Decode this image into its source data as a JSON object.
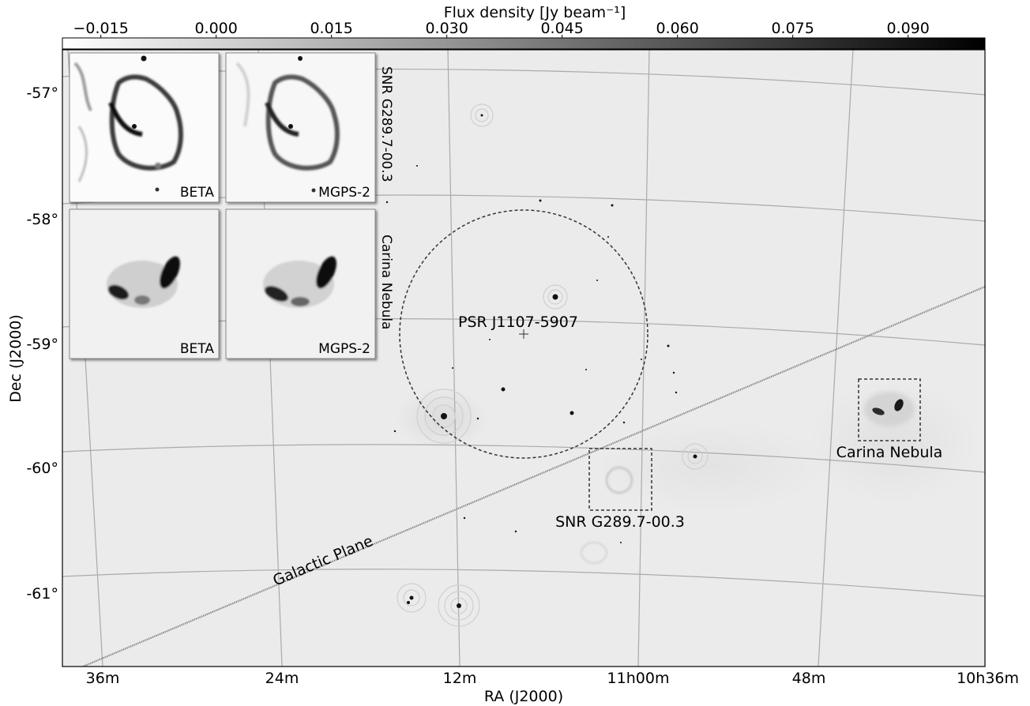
{
  "chart_data": {
    "type": "heatmap",
    "colorbar": {
      "label": "Flux density [Jy beam⁻¹]",
      "ticks": [
        "−0.015",
        "0.000",
        "0.015",
        "0.030",
        "0.045",
        "0.060",
        "0.075",
        "0.090"
      ],
      "tick_values": [
        -0.015,
        0.0,
        0.015,
        0.03,
        0.045,
        0.06,
        0.075,
        0.09
      ],
      "range": [
        -0.02,
        0.1
      ],
      "colors": [
        "#ffffff",
        "#000000"
      ]
    },
    "xlabel": "RA (J2000)",
    "ylabel": "Dec (J2000)",
    "x_ticks": [
      "36m",
      "24m",
      "12m",
      "11h00m",
      "48m",
      "10h36m"
    ],
    "y_ticks": [
      "-57°",
      "-58°",
      "-59°",
      "-60°",
      "-61°"
    ],
    "grid": true,
    "annotations": {
      "pulsar": "PSR J1107-5907",
      "snr": "SNR G289.7-00.3",
      "carina": "Carina Nebula",
      "galactic_plane": "Galactic Plane"
    },
    "insets": [
      {
        "label": "BETA",
        "group": "SNR G289.7-00.3"
      },
      {
        "label": "MGPS-2",
        "group": "SNR G289.7-00.3"
      },
      {
        "label": "BETA",
        "group": "Carina Nebula"
      },
      {
        "label": "MGPS-2",
        "group": "Carina Nebula"
      }
    ],
    "inset_group_labels": [
      "SNR G289.7-00.3",
      "Carina Nebula"
    ]
  }
}
